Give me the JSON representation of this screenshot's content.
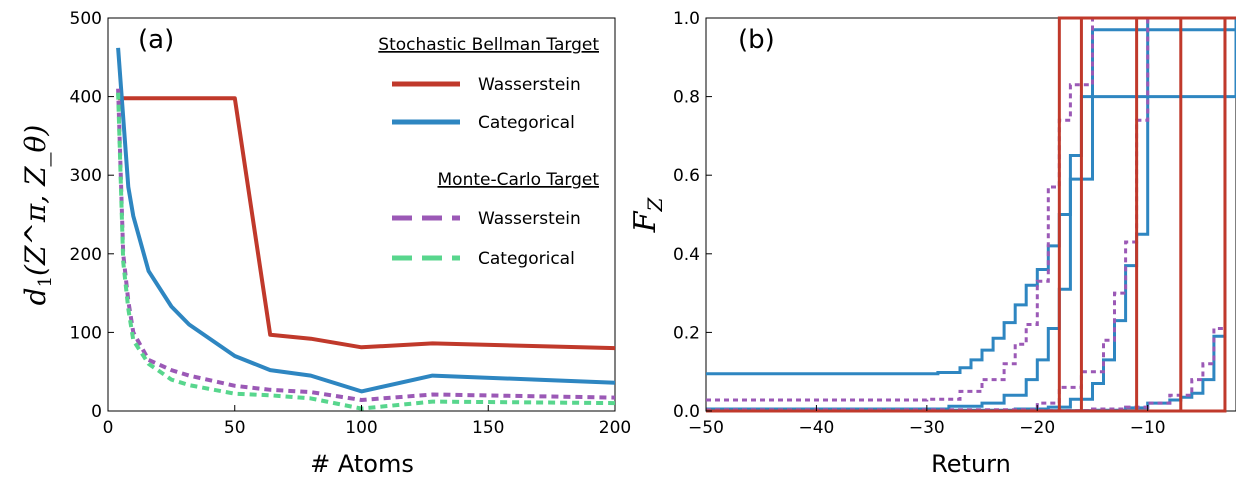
{
  "chart_data": [
    {
      "type": "line",
      "panel_label": "(a)",
      "xlabel": "# Atoms",
      "ylabel_main": "d",
      "ylabel_sub": "1",
      "ylabel_args": "(Z^π, Z_θ)",
      "xlim": [
        0,
        200
      ],
      "ylim": [
        0,
        500
      ],
      "xticks": [
        0,
        50,
        100,
        150,
        200
      ],
      "yticks": [
        0,
        100,
        200,
        300,
        400,
        500
      ],
      "legend_placement": "top-right",
      "legend_groups": [
        {
          "title": "Stochastic Bellman Target",
          "entries": [
            "Wasserstein",
            "Categorical"
          ]
        },
        {
          "title": "Monte-Carlo Target",
          "entries": [
            "Wasserstein",
            "Categorical"
          ]
        }
      ],
      "series": [
        {
          "name": "Wasserstein",
          "group": "Stochastic Bellman Target",
          "color": "#c0392b",
          "dash": "solid",
          "x": [
            4,
            10,
            16,
            25,
            35,
            50,
            64,
            80,
            100,
            128,
            200
          ],
          "y": [
            398,
            398,
            398,
            398,
            398,
            398,
            97,
            92,
            81,
            86,
            80
          ]
        },
        {
          "name": "Categorical",
          "group": "Stochastic Bellman Target",
          "color": "#2e86c1",
          "dash": "solid",
          "x": [
            4,
            8,
            10,
            16,
            25,
            32,
            50,
            64,
            80,
            100,
            128,
            200
          ],
          "y": [
            462,
            285,
            248,
            178,
            133,
            110,
            70,
            52,
            45,
            25,
            45,
            36
          ]
        },
        {
          "name": "Wasserstein",
          "group": "Monte-Carlo Target",
          "color": "#9b59b6",
          "dash": "dashed",
          "x": [
            4,
            6,
            8,
            10,
            16,
            25,
            32,
            50,
            64,
            80,
            100,
            128,
            200
          ],
          "y": [
            410,
            200,
            140,
            100,
            65,
            52,
            45,
            32,
            27,
            24,
            14,
            21,
            17
          ]
        },
        {
          "name": "Categorical",
          "group": "Monte-Carlo Target",
          "color": "#58d68d",
          "dash": "dashed",
          "x": [
            4,
            6,
            8,
            10,
            16,
            25,
            32,
            50,
            64,
            80,
            100,
            128,
            200
          ],
          "y": [
            405,
            190,
            130,
            90,
            60,
            40,
            33,
            22,
            20,
            16,
            3,
            12,
            10
          ]
        }
      ]
    },
    {
      "type": "line",
      "panel_label": "(b)",
      "xlabel": "Return",
      "ylabel_main": "F",
      "ylabel_sub": "Z",
      "xlim": [
        -50,
        -2
      ],
      "ylim": [
        0,
        1.0
      ],
      "xticks": [
        -50,
        -40,
        -30,
        -20,
        -10
      ],
      "xtick_labels": [
        "−50",
        "−40",
        "−30",
        "−20",
        "−10"
      ],
      "yticks": [
        0.0,
        0.2,
        0.4,
        0.6,
        0.8,
        1.0
      ],
      "ytick_labels": [
        "0.0",
        "0.2",
        "0.4",
        "0.6",
        "0.8",
        "1.0"
      ],
      "series": [
        {
          "color": "#2e86c1",
          "dash": "solid",
          "kind": "step",
          "x": [
            -50,
            -29,
            -27,
            -26,
            -25,
            -24,
            -23,
            -22,
            -21,
            -20,
            -19,
            -18,
            -17,
            -16,
            -2
          ],
          "y": [
            0.095,
            0.098,
            0.11,
            0.13,
            0.155,
            0.185,
            0.225,
            0.27,
            0.32,
            0.36,
            0.42,
            0.5,
            0.65,
            0.8,
            1.0
          ]
        },
        {
          "color": "#2e86c1",
          "dash": "solid",
          "kind": "step",
          "x": [
            -50,
            -28,
            -25,
            -23,
            -21,
            -20,
            -19,
            -18,
            -17,
            -15,
            -2
          ],
          "y": [
            0.005,
            0.012,
            0.02,
            0.04,
            0.08,
            0.13,
            0.21,
            0.31,
            0.59,
            0.97,
            1.0
          ]
        },
        {
          "color": "#2e86c1",
          "dash": "solid",
          "kind": "step",
          "x": [
            -50,
            -22,
            -19,
            -17,
            -15,
            -14,
            -13,
            -12,
            -11,
            -10,
            -2
          ],
          "y": [
            0.002,
            0.005,
            0.01,
            0.03,
            0.07,
            0.13,
            0.23,
            0.37,
            0.45,
            1.0,
            1.0
          ]
        },
        {
          "color": "#2e86c1",
          "dash": "solid",
          "kind": "step",
          "x": [
            -50,
            -15,
            -12,
            -10,
            -8,
            -7,
            -6,
            -5,
            -4,
            -3,
            -2
          ],
          "y": [
            0.001,
            0.002,
            0.008,
            0.02,
            0.028,
            0.035,
            0.045,
            0.08,
            0.19,
            1.0,
            1.0
          ]
        },
        {
          "color": "#9b59b6",
          "dash": "dashed",
          "kind": "step",
          "x": [
            -50,
            -30,
            -27,
            -25,
            -23,
            -22,
            -21,
            -20,
            -19,
            -18,
            -17,
            -15,
            -2
          ],
          "y": [
            0.028,
            0.03,
            0.05,
            0.08,
            0.12,
            0.17,
            0.22,
            0.33,
            0.57,
            0.74,
            0.83,
            1.0,
            1.0
          ]
        },
        {
          "color": "#9b59b6",
          "dash": "dashed",
          "kind": "step",
          "x": [
            -50,
            -20,
            -18,
            -16,
            -14,
            -13,
            -12,
            -11,
            -10,
            -9,
            -2
          ],
          "y": [
            0.003,
            0.02,
            0.06,
            0.1,
            0.18,
            0.3,
            0.43,
            0.74,
            1.0,
            1.0,
            1.0
          ]
        },
        {
          "color": "#9b59b6",
          "dash": "dashed",
          "kind": "step",
          "x": [
            -50,
            -15,
            -12,
            -10,
            -8,
            -6,
            -5,
            -4,
            -3,
            -2
          ],
          "y": [
            0.001,
            0.005,
            0.01,
            0.02,
            0.04,
            0.08,
            0.12,
            0.21,
            1.0,
            1.0
          ]
        },
        {
          "color": "#c0392b",
          "dash": "solid",
          "kind": "vstep",
          "at": -18
        },
        {
          "color": "#c0392b",
          "dash": "solid",
          "kind": "vstep",
          "at": -16
        },
        {
          "color": "#c0392b",
          "dash": "solid",
          "kind": "vstep",
          "at": -11
        },
        {
          "color": "#c0392b",
          "dash": "solid",
          "kind": "vstep",
          "at": -7
        },
        {
          "color": "#c0392b",
          "dash": "solid",
          "kind": "vstep",
          "at": -3
        }
      ]
    }
  ]
}
